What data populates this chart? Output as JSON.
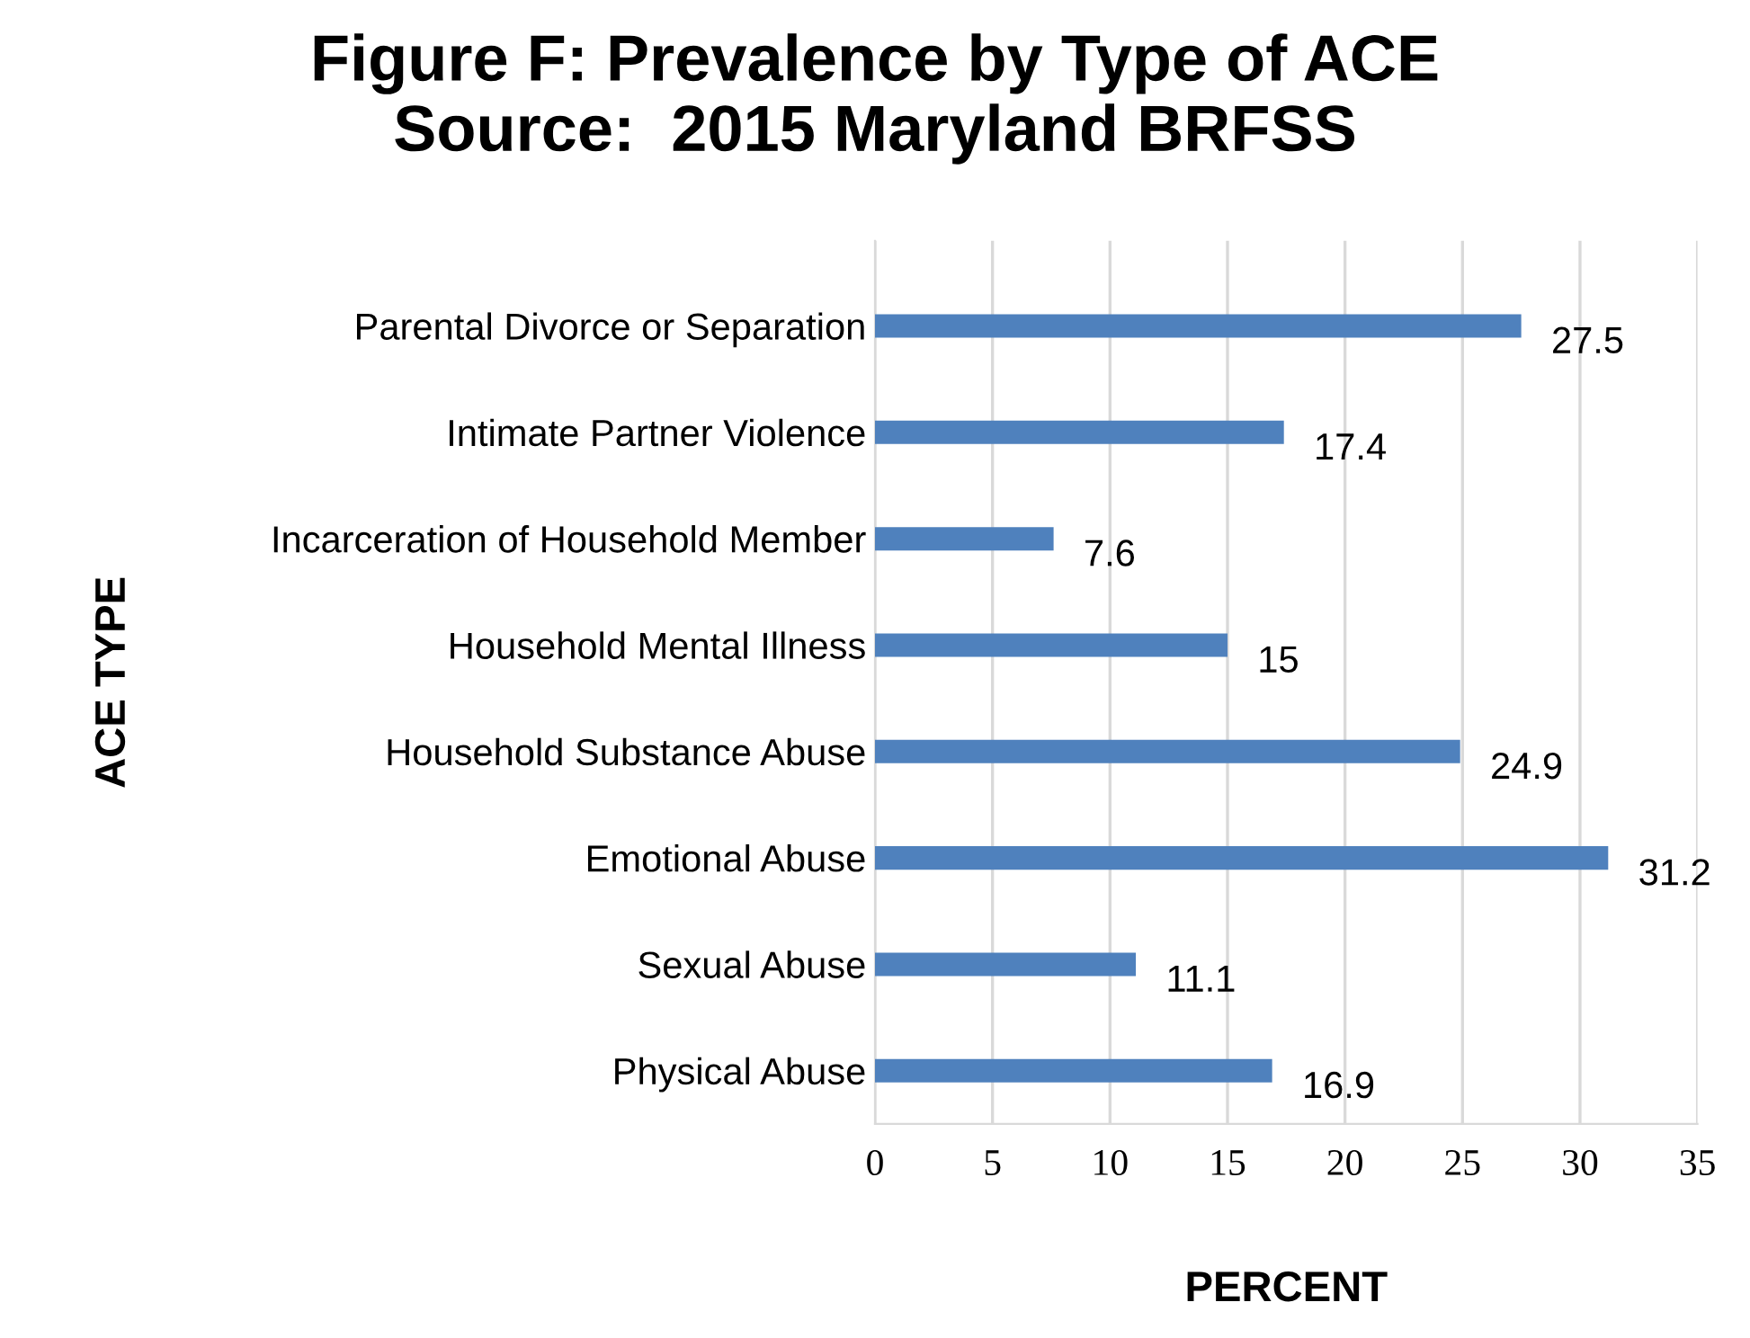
{
  "chart_data": {
    "type": "bar",
    "orientation": "horizontal",
    "title": "Figure F: Prevalence by Type of ACE\nSource:  2015 Maryland BRFSS",
    "xlabel": "PERCENT",
    "ylabel": "ACE TYPE",
    "categories": [
      "Parental Divorce or Separation",
      "Intimate Partner Violence",
      "Incarceration of Household Member",
      "Household Mental Illness",
      "Household Substance Abuse",
      "Emotional Abuse",
      "Sexual Abuse",
      "Physical Abuse"
    ],
    "values": [
      27.5,
      17.4,
      7.6,
      15,
      24.9,
      31.2,
      11.1,
      16.9
    ],
    "color": "#4f81bd",
    "data_labels": true,
    "xlim": [
      0,
      35
    ],
    "xticks": [
      0,
      5,
      10,
      15,
      20,
      25,
      30,
      35
    ],
    "grid": "x"
  }
}
